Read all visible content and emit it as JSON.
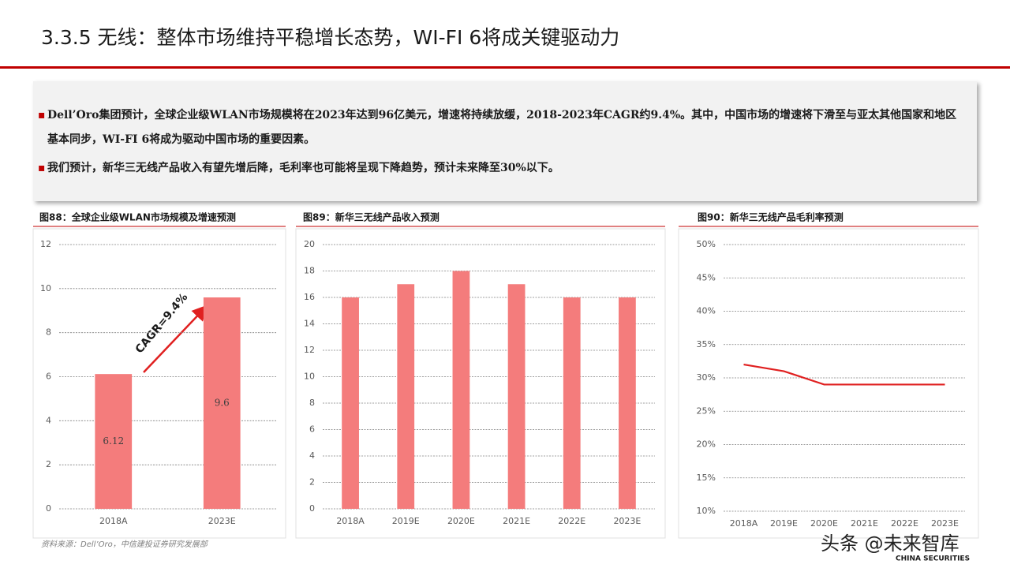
{
  "header": {
    "title": "3.3.5 无线：整体市场维持平稳增长态势，WI-FI 6将成关键驱动力"
  },
  "bullets": [
    "Dell’Oro集团预计，全球企业级WLAN市场规模将在2023年达到96亿美元，增速将持续放缓，2018-2023年CAGR约9.4%。其中，中国市场的增速将下滑至与亚太其他国家和地区基本同步，WI-FI 6将成为驱动中国市场的重要因素。",
    "我们预计，新华三无线产品收入有望先增后降，毛利率也可能将呈现下降趋势，预计未来降至30%以下。"
  ],
  "source": "资料来源：Dell’Oro，中信建投证券研究发展部",
  "watermark": {
    "text": "头条 @未来智库",
    "logo": "CHINA SECURITIES"
  },
  "chart_data": [
    {
      "type": "bar",
      "title": "图88：全球企业级WLAN市场规模及增速预测",
      "categories": [
        "2018A",
        "2023E"
      ],
      "values": [
        6.12,
        9.6
      ],
      "color": "#f47c7c",
      "ylim": [
        0,
        12
      ],
      "yticks": [
        0,
        2,
        4,
        6,
        8,
        10,
        12
      ],
      "grid": true,
      "annotation": "CAGR=9.4%"
    },
    {
      "type": "bar",
      "title": "图89：新华三无线产品收入预测",
      "categories": [
        "2018A",
        "2019E",
        "2020E",
        "2021E",
        "2022E",
        "2023E"
      ],
      "values": [
        16,
        17,
        18,
        17,
        16,
        16
      ],
      "color": "#f47c7c",
      "ylim": [
        0,
        20
      ],
      "yticks": [
        0,
        2,
        4,
        6,
        8,
        10,
        12,
        14,
        16,
        18,
        20
      ],
      "grid": true
    },
    {
      "type": "line",
      "title": "图90：新华三无线产品毛利率预测",
      "categories": [
        "2018A",
        "2019E",
        "2020E",
        "2021E",
        "2022E",
        "2023E"
      ],
      "values": [
        32,
        31,
        29,
        29,
        29,
        29
      ],
      "color": "#e02020",
      "ylim": [
        10,
        50
      ],
      "yticks": [
        {
          "value": 10,
          "label": "10%"
        },
        {
          "value": 15,
          "label": "15%"
        },
        {
          "value": 20,
          "label": "20%"
        },
        {
          "value": 25,
          "label": "25%"
        },
        {
          "value": 30,
          "label": "30%"
        },
        {
          "value": 35,
          "label": "35%"
        },
        {
          "value": 40,
          "label": "40%"
        },
        {
          "value": 45,
          "label": "45%"
        },
        {
          "value": 50,
          "label": "50%"
        }
      ],
      "grid": true
    }
  ]
}
